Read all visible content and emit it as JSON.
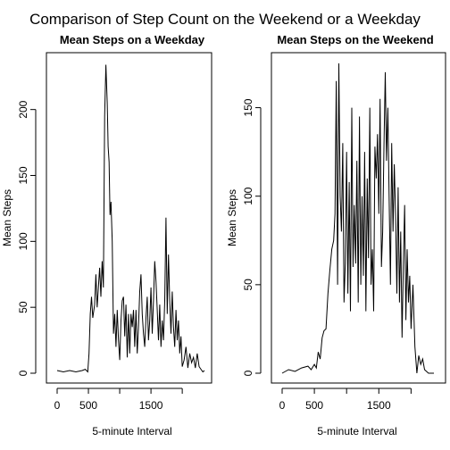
{
  "figure": {
    "title": "Comparison of Step Count on the Weekend or a Weekday"
  },
  "chart_data": [
    {
      "type": "line",
      "title": "Mean Steps on a Weekday",
      "xlabel": "5-minute Interval",
      "ylabel": "Mean Steps",
      "xlim": [
        0,
        2355
      ],
      "ylim": [
        0,
        235
      ],
      "xticks": [
        0,
        500,
        1500
      ],
      "yticks": [
        0,
        50,
        100,
        150,
        200
      ],
      "series": [
        {
          "x": [
            0,
            100,
            200,
            300,
            400,
            450,
            490,
            510,
            530,
            550,
            570,
            600,
            620,
            640,
            660,
            680,
            700,
            720,
            740,
            760,
            780,
            800,
            815,
            830,
            845,
            860,
            880,
            900,
            920,
            940,
            960,
            980,
            1000,
            1020,
            1040,
            1060,
            1080,
            1100,
            1120,
            1140,
            1160,
            1180,
            1200,
            1220,
            1240,
            1260,
            1280,
            1300,
            1320,
            1340,
            1360,
            1380,
            1400,
            1420,
            1440,
            1460,
            1480,
            1500,
            1520,
            1540,
            1560,
            1580,
            1600,
            1620,
            1640,
            1660,
            1680,
            1700,
            1720,
            1740,
            1760,
            1780,
            1800,
            1820,
            1840,
            1860,
            1880,
            1900,
            1920,
            1940,
            1960,
            1980,
            2000,
            2030,
            2060,
            2090,
            2120,
            2150,
            2180,
            2210,
            2240,
            2270,
            2300,
            2330,
            2355
          ],
          "y": [
            2,
            1,
            2,
            1,
            2,
            3,
            1,
            15,
            45,
            58,
            42,
            52,
            75,
            50,
            65,
            80,
            58,
            85,
            65,
            195,
            234,
            205,
            172,
            160,
            120,
            130,
            100,
            30,
            45,
            20,
            48,
            25,
            10,
            40,
            55,
            58,
            28,
            52,
            12,
            45,
            15,
            45,
            35,
            48,
            20,
            48,
            15,
            35,
            62,
            75,
            45,
            30,
            20,
            42,
            58,
            25,
            40,
            65,
            30,
            55,
            85,
            70,
            48,
            25,
            52,
            20,
            40,
            25,
            55,
            118,
            45,
            90,
            55,
            30,
            62,
            35,
            20,
            48,
            25,
            40,
            15,
            28,
            5,
            10,
            20,
            4,
            15,
            8,
            12,
            4,
            15,
            5,
            3,
            1,
            2
          ]
        }
      ]
    },
    {
      "type": "line",
      "title": "Mean Steps on the Weekend",
      "xlabel": "5-minute Interval",
      "ylabel": "Mean Steps",
      "xlim": [
        0,
        2355
      ],
      "ylim": [
        0,
        175
      ],
      "xticks": [
        0,
        500,
        1500
      ],
      "yticks": [
        0,
        50,
        100,
        150
      ],
      "series": [
        {
          "x": [
            0,
            100,
            200,
            300,
            400,
            450,
            500,
            530,
            560,
            590,
            620,
            650,
            680,
            710,
            740,
            770,
            800,
            820,
            840,
            860,
            880,
            900,
            920,
            940,
            960,
            980,
            1000,
            1020,
            1040,
            1060,
            1080,
            1100,
            1120,
            1140,
            1160,
            1180,
            1200,
            1220,
            1240,
            1260,
            1280,
            1300,
            1320,
            1340,
            1360,
            1380,
            1400,
            1420,
            1440,
            1460,
            1480,
            1500,
            1520,
            1540,
            1560,
            1580,
            1600,
            1620,
            1640,
            1660,
            1680,
            1700,
            1720,
            1740,
            1760,
            1780,
            1800,
            1820,
            1840,
            1860,
            1880,
            1900,
            1920,
            1940,
            1960,
            1980,
            2000,
            2030,
            2060,
            2090,
            2120,
            2150,
            2180,
            2210,
            2240,
            2270,
            2300,
            2330,
            2355
          ],
          "y": [
            0,
            2,
            1,
            3,
            4,
            2,
            5,
            3,
            12,
            8,
            20,
            24,
            25,
            45,
            58,
            70,
            75,
            90,
            165,
            50,
            175,
            100,
            80,
            130,
            40,
            62,
            125,
            45,
            108,
            35,
            150,
            60,
            95,
            62,
            120,
            40,
            145,
            50,
            100,
            55,
            125,
            35,
            110,
            65,
            150,
            50,
            70,
            35,
            128,
            110,
            135,
            90,
            155,
            60,
            80,
            130,
            170,
            120,
            150,
            100,
            50,
            130,
            80,
            118,
            90,
            45,
            105,
            40,
            80,
            20,
            60,
            95,
            30,
            70,
            40,
            55,
            25,
            50,
            15,
            0,
            10,
            5,
            8,
            2,
            1,
            0,
            0,
            0,
            0
          ]
        }
      ]
    }
  ]
}
